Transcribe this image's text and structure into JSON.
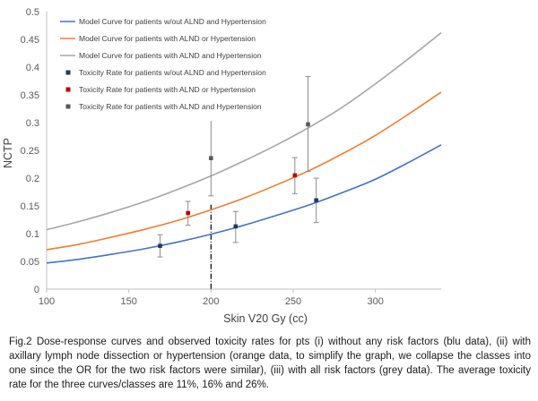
{
  "chart_data": {
    "type": "line",
    "title": "",
    "xlabel": "Skin V20 Gy (cc)",
    "ylabel": "NCTP",
    "xlim": [
      100,
      340
    ],
    "ylim": [
      0,
      0.5
    ],
    "x_ticks": [
      "100",
      "150",
      "200",
      "250",
      "300"
    ],
    "y_ticks": [
      "0",
      "0.05",
      "0.1",
      "0.15",
      "0.2",
      "0.25",
      "0.3",
      "0.35",
      "0.4",
      "0.45",
      "0.5"
    ],
    "grid": false,
    "legend_position": "top-left",
    "reference_line": {
      "x": 200,
      "style": "dash-dot"
    },
    "series": [
      {
        "name": "Model Curve for patients w/out ALND and Hypertension",
        "kind": "curve",
        "color": "#4472C4",
        "x": [
          100,
          120,
          140,
          160,
          180,
          200,
          220,
          240,
          260,
          280,
          300,
          320,
          340
        ],
        "y": [
          0.047,
          0.054,
          0.063,
          0.073,
          0.085,
          0.099,
          0.115,
          0.133,
          0.152,
          0.174,
          0.198,
          0.228,
          0.26
        ]
      },
      {
        "name": "Model Curve for patients with ALND or Hypertension",
        "kind": "curve",
        "color": "#ED7D31",
        "x": [
          100,
          120,
          140,
          160,
          180,
          200,
          220,
          240,
          260,
          280,
          300,
          320,
          340
        ],
        "y": [
          0.071,
          0.081,
          0.094,
          0.108,
          0.124,
          0.143,
          0.164,
          0.188,
          0.214,
          0.244,
          0.277,
          0.315,
          0.355
        ]
      },
      {
        "name": "Model Curve for patients with ALND and Hypertension",
        "kind": "curve",
        "color": "#A5A5A5",
        "x": [
          100,
          120,
          140,
          160,
          180,
          200,
          220,
          240,
          260,
          280,
          300,
          320,
          340
        ],
        "y": [
          0.107,
          0.122,
          0.139,
          0.158,
          0.18,
          0.204,
          0.231,
          0.26,
          0.292,
          0.328,
          0.37,
          0.415,
          0.462
        ]
      },
      {
        "name": "Toxicity Rate for patients w/out ALND and Hypertension",
        "kind": "points",
        "color": "#1F3864",
        "x": [
          169,
          215,
          264
        ],
        "y": [
          0.078,
          0.113,
          0.16
        ],
        "err_low": [
          0.058,
          0.084,
          0.12
        ],
        "err_high": [
          0.098,
          0.14,
          0.2
        ]
      },
      {
        "name": "Toxicity Rate for patients with ALND or Hypertension",
        "kind": "points",
        "color": "#C00000",
        "x": [
          186,
          251
        ],
        "y": [
          0.137,
          0.205
        ],
        "err_low": [
          0.115,
          0.172
        ],
        "err_high": [
          0.158,
          0.237
        ]
      },
      {
        "name": "Toxicity Rate for patients with ALND and Hypertension",
        "kind": "points",
        "color": "#595959",
        "x": [
          200,
          259
        ],
        "y": [
          0.236,
          0.297
        ],
        "err_low": [
          0.168,
          0.212
        ],
        "err_high": [
          0.305,
          0.383
        ]
      }
    ]
  },
  "caption": "Fig.2 Dose-response curves and observed toxicity rates for pts (i) without any risk factors (blu data), (ii) with axillary lymph node dissection or hypertension (orange data, to simplify the graph, we collapse the classes into one since the OR for the two risk factors were similar), (iii) with all risk factors (grey data). The average toxicity rate for the three curves/classes are 11%, 16% and 26%."
}
